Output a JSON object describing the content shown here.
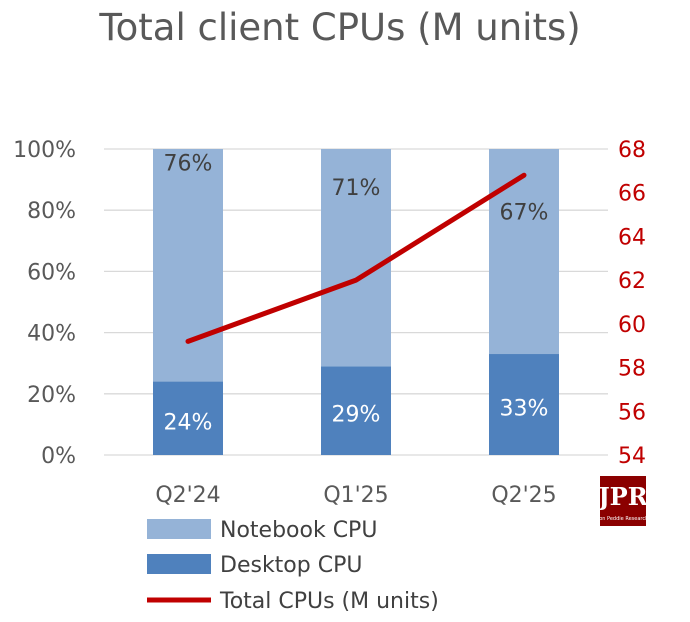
{
  "chart_data": {
    "type": "bar",
    "subtype": "100% stacked bar with line on secondary axis",
    "title": "Total client CPUs (M units)",
    "categories": [
      "Q2'24",
      "Q1'25",
      "Q2'25"
    ],
    "series": [
      {
        "name": "Desktop CPU",
        "type": "bar",
        "axis": "left",
        "values": [
          24,
          29,
          33
        ],
        "labels": [
          "24%",
          "29%",
          "33%"
        ],
        "color": "#4f81bd"
      },
      {
        "name": "Notebook CPU",
        "type": "bar",
        "axis": "left",
        "values": [
          76,
          71,
          67
        ],
        "labels": [
          "76%",
          "71%",
          "67%"
        ],
        "color": "#95b3d7"
      },
      {
        "name": "Total CPUs (M units)",
        "type": "line",
        "axis": "right",
        "values": [
          59.2,
          62.0,
          66.8
        ],
        "color": "#c00000"
      }
    ],
    "y_left": {
      "ticks": [
        "0%",
        "20%",
        "40%",
        "60%",
        "80%",
        "100%"
      ],
      "ylim": [
        0,
        100
      ]
    },
    "y_right": {
      "ticks": [
        "54",
        "56",
        "58",
        "60",
        "62",
        "64",
        "66",
        "68"
      ],
      "ylim": [
        54,
        68
      ],
      "color": "#c00000"
    },
    "grid": true,
    "legend": {
      "position": "bottom-left",
      "entries": [
        {
          "label": "Notebook CPU",
          "color": "#95b3d7",
          "symbol": "box"
        },
        {
          "label": "Desktop CPU",
          "color": "#4f81bd",
          "symbol": "box"
        },
        {
          "label": "Total CPUs (M units)",
          "color": "#c00000",
          "symbol": "line"
        }
      ]
    }
  },
  "logo": {
    "text": "JPR",
    "subtext": "Jon Peddie Research",
    "color": "#8b0000"
  }
}
